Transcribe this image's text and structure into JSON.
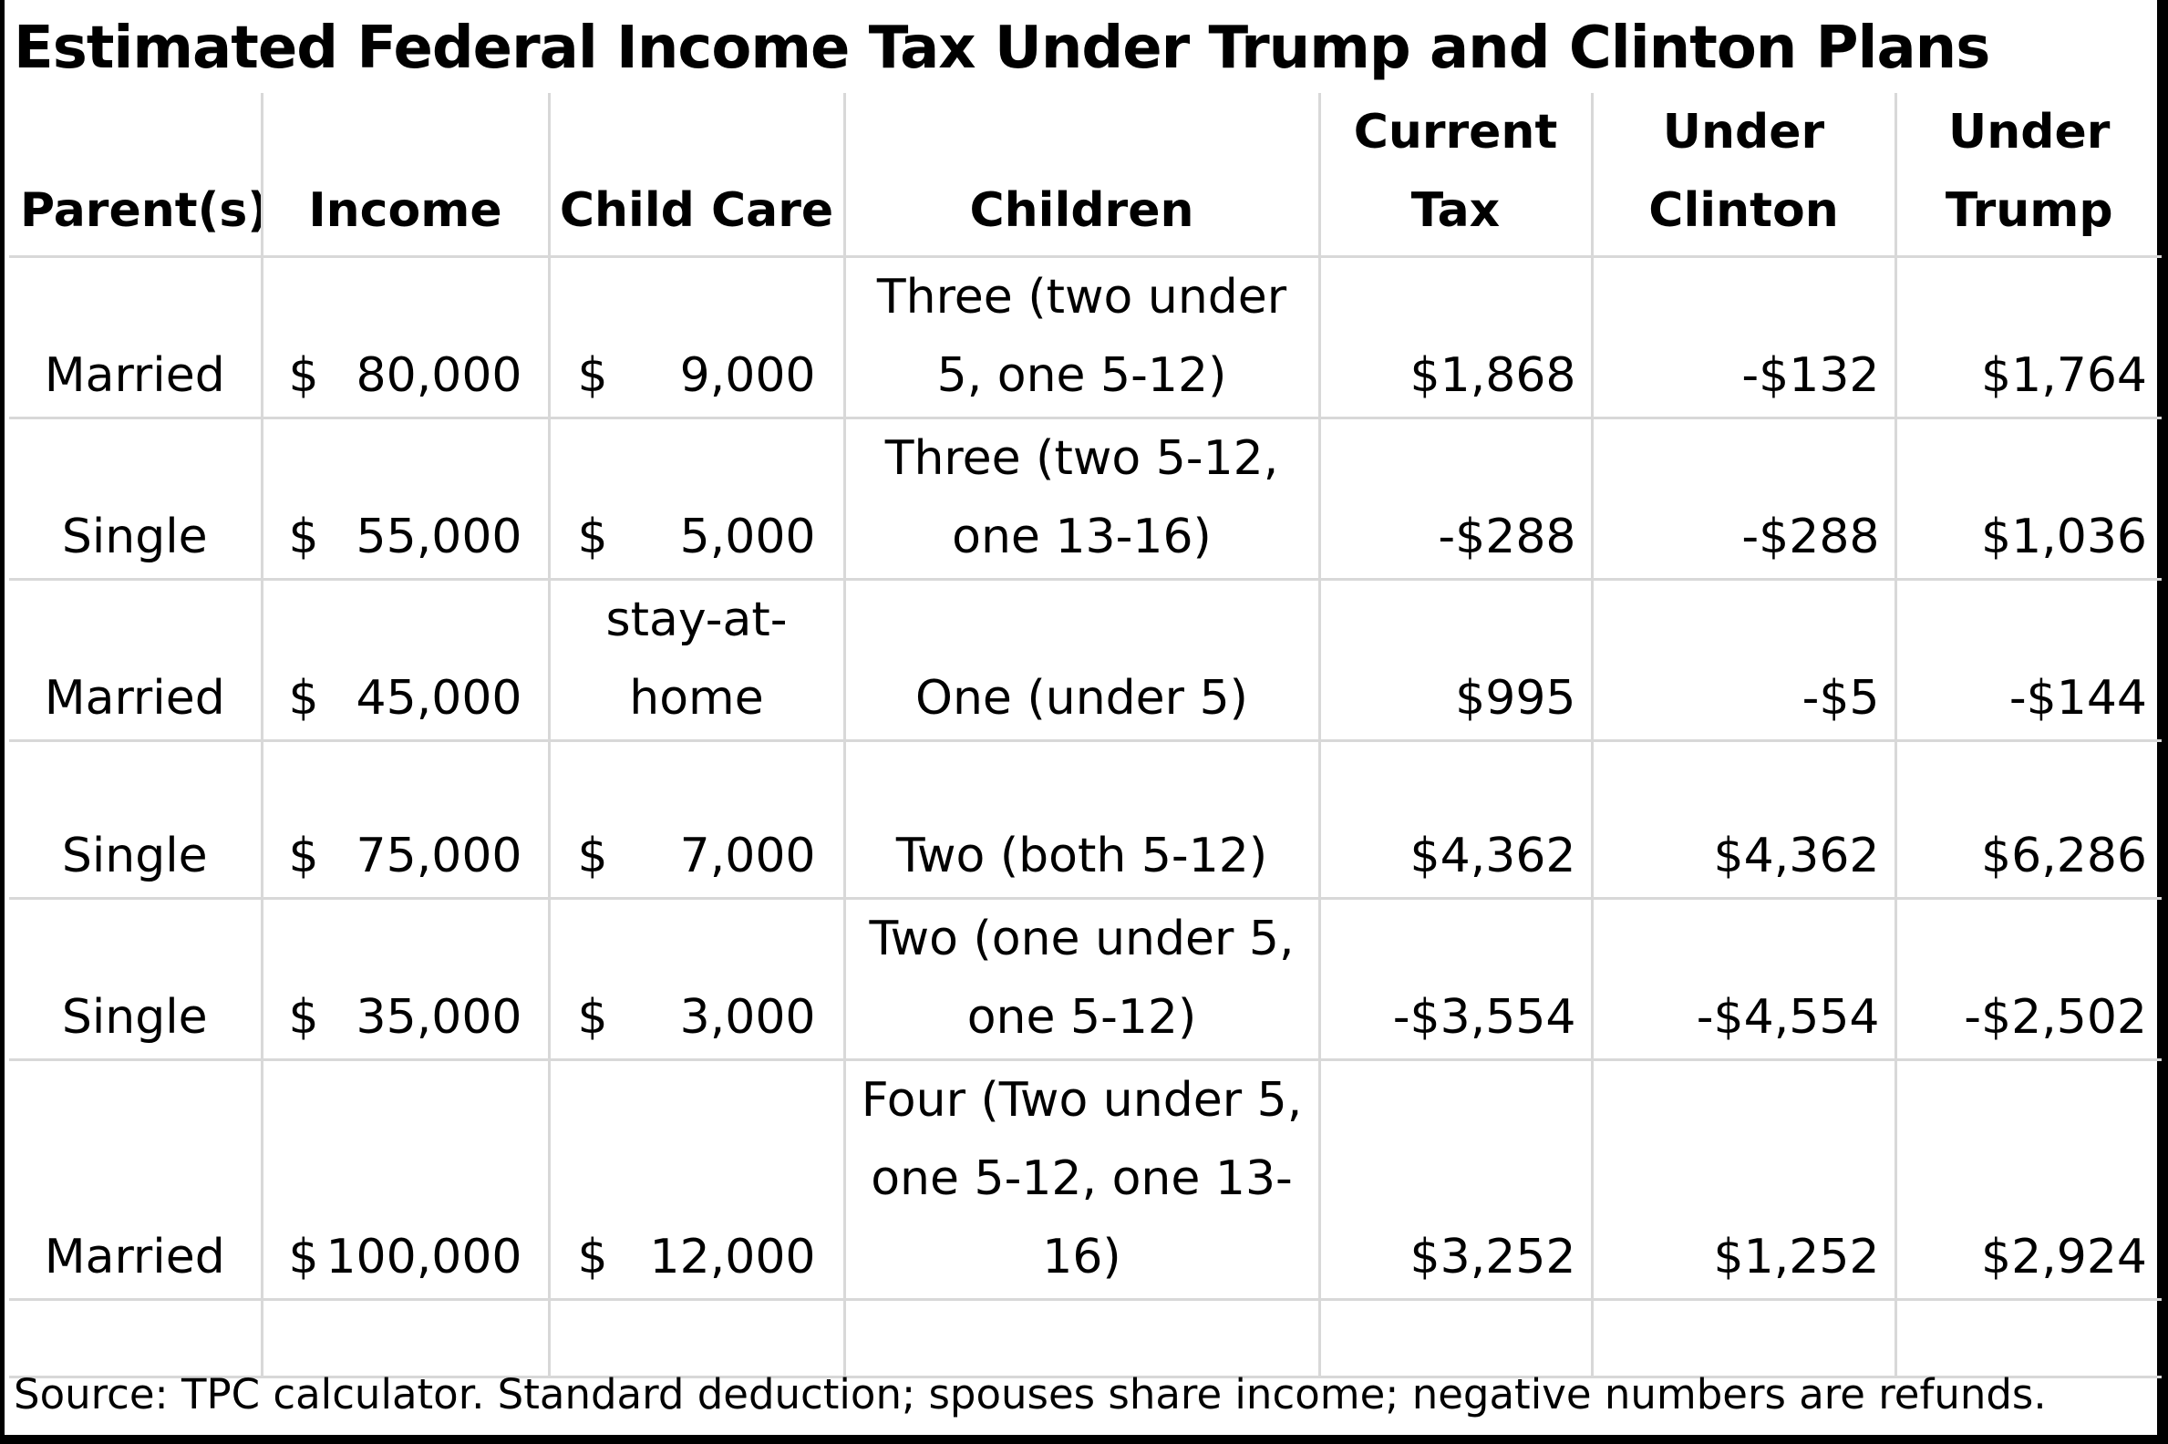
{
  "title": "Estimated Federal Income Tax Under Trump and Clinton Plans",
  "headers": {
    "parents": "Parent(s)",
    "income": "Income",
    "child_care": "Child Care",
    "children": "Children",
    "current_tax": "Current Tax",
    "under_clinton": "Under Clinton",
    "under_trump": "Under Trump"
  },
  "rows": [
    {
      "parents": "Married",
      "income_symbol": "$",
      "income": "80,000",
      "child_care_symbol": "$",
      "child_care": "9,000",
      "children": "Three (two under 5, one 5-12)",
      "current_tax": "$1,868",
      "under_clinton": "-$132",
      "under_trump": "$1,764"
    },
    {
      "parents": "Single",
      "income_symbol": "$",
      "income": "55,000",
      "child_care_symbol": "$",
      "child_care": "5,000",
      "children": "Three (two 5-12, one 13-16)",
      "current_tax": "-$288",
      "under_clinton": "-$288",
      "under_trump": "$1,036"
    },
    {
      "parents": "Married",
      "income_symbol": "$",
      "income": "45,000",
      "child_care_symbol": "",
      "child_care": "stay-at-home",
      "children": "One (under 5)",
      "current_tax": "$995",
      "under_clinton": "-$5",
      "under_trump": "-$144"
    },
    {
      "parents": "Single",
      "income_symbol": "$",
      "income": "75,000",
      "child_care_symbol": "$",
      "child_care": "7,000",
      "children": "Two (both 5-12)",
      "current_tax": "$4,362",
      "under_clinton": "$4,362",
      "under_trump": "$6,286"
    },
    {
      "parents": "Single",
      "income_symbol": "$",
      "income": "35,000",
      "child_care_symbol": "$",
      "child_care": "3,000",
      "children": "Two (one under 5, one 5-12)",
      "current_tax": "-$3,554",
      "under_clinton": "-$4,554",
      "under_trump": "-$2,502"
    },
    {
      "parents": "Married",
      "income_symbol": "$",
      "income": "100,000",
      "child_care_symbol": "$",
      "child_care": "12,000",
      "children": "Four (Two under 5, one 5-12, one 13-16)",
      "current_tax": "$3,252",
      "under_clinton": "$1,252",
      "under_trump": "$2,924"
    }
  ],
  "source": "Source: TPC calculator. Standard deduction; spouses share income; negative numbers are refunds."
}
